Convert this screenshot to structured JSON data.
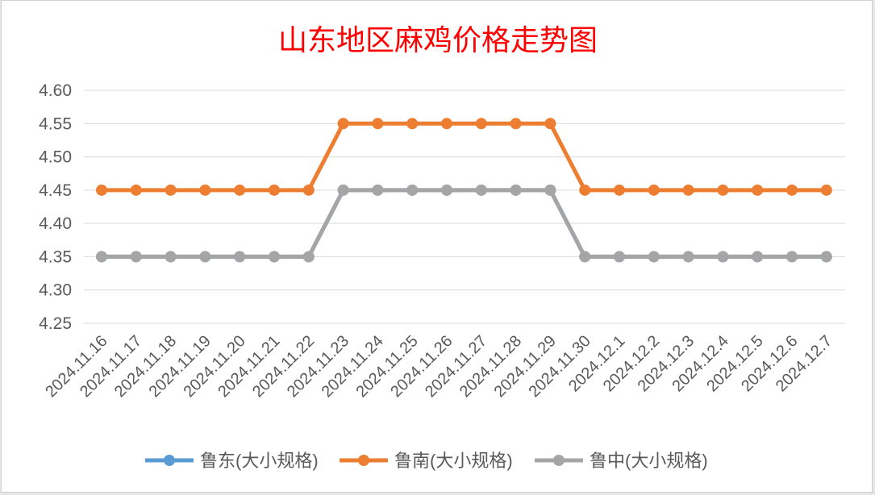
{
  "chart_data": {
    "type": "line",
    "title": "山东地区麻鸡价格走势图",
    "xlabel": "",
    "ylabel": "",
    "ylim": [
      4.25,
      4.6
    ],
    "yticks": [
      "4.60",
      "4.55",
      "4.50",
      "4.45",
      "4.40",
      "4.35",
      "4.30",
      "4.25"
    ],
    "grid": true,
    "legend_position": "bottom",
    "categories": [
      "2024.11.16",
      "2024.11.17",
      "2024.11.18",
      "2024.11.19",
      "2024.11.20",
      "2024.11.21",
      "2024.11.22",
      "2024.11.23",
      "2024.11.24",
      "2024.11.25",
      "2024.11.26",
      "2024.11.27",
      "2024.11.28",
      "2024.11.29",
      "2024.11.30",
      "2024.12.1",
      "2024.12.2",
      "2024.12.3",
      "2024.12.4",
      "2024.12.5",
      "2024.12.6",
      "2024.12.7"
    ],
    "series": [
      {
        "name": "鲁东(大小规格)",
        "color": "#5b9bd5",
        "values": [
          4.35,
          4.35,
          4.35,
          4.35,
          4.35,
          4.35,
          4.35,
          4.45,
          4.45,
          4.45,
          4.45,
          4.45,
          4.45,
          4.45,
          4.35,
          4.35,
          4.35,
          4.35,
          4.35,
          4.35,
          4.35,
          4.35
        ]
      },
      {
        "name": "鲁南(大小规格)",
        "color": "#ed7d31",
        "values": [
          4.45,
          4.45,
          4.45,
          4.45,
          4.45,
          4.45,
          4.45,
          4.55,
          4.55,
          4.55,
          4.55,
          4.55,
          4.55,
          4.55,
          4.45,
          4.45,
          4.45,
          4.45,
          4.45,
          4.45,
          4.45,
          4.45
        ]
      },
      {
        "name": "鲁中(大小规格)",
        "color": "#a5a5a5",
        "values": [
          4.35,
          4.35,
          4.35,
          4.35,
          4.35,
          4.35,
          4.35,
          4.45,
          4.45,
          4.45,
          4.45,
          4.45,
          4.45,
          4.45,
          4.35,
          4.35,
          4.35,
          4.35,
          4.35,
          4.35,
          4.35,
          4.35
        ]
      }
    ]
  }
}
